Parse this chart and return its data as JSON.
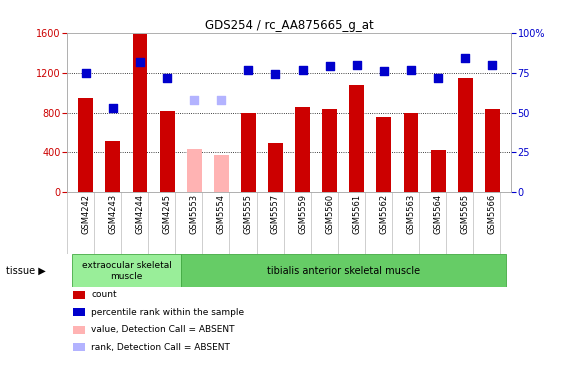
{
  "title": "GDS254 / rc_AA875665_g_at",
  "categories": [
    "GSM4242",
    "GSM4243",
    "GSM4244",
    "GSM4245",
    "GSM5553",
    "GSM5554",
    "GSM5555",
    "GSM5557",
    "GSM5559",
    "GSM5560",
    "GSM5561",
    "GSM5562",
    "GSM5563",
    "GSM5564",
    "GSM5565",
    "GSM5566"
  ],
  "bar_values": [
    950,
    510,
    1590,
    820,
    null,
    null,
    800,
    490,
    860,
    840,
    1080,
    760,
    800,
    420,
    1150,
    840
  ],
  "absent_bar_values": [
    null,
    null,
    null,
    null,
    430,
    370,
    null,
    null,
    null,
    null,
    null,
    null,
    null,
    null,
    null,
    null
  ],
  "dot_values": [
    75,
    53,
    82,
    72,
    null,
    null,
    77,
    74,
    77,
    79,
    80,
    76,
    77,
    72,
    84,
    80
  ],
  "absent_dot_values": [
    null,
    null,
    null,
    null,
    58,
    58,
    null,
    null,
    null,
    null,
    null,
    null,
    null,
    null,
    null,
    null
  ],
  "bar_color": "#cc0000",
  "absent_bar_color": "#ffb3b3",
  "dot_color": "#0000cc",
  "absent_dot_color": "#b3b3ff",
  "ylim_left": [
    0,
    1600
  ],
  "ylim_right": [
    0,
    100
  ],
  "yticks_left": [
    0,
    400,
    800,
    1200,
    1600
  ],
  "yticks_right": [
    0,
    25,
    50,
    75,
    100
  ],
  "ytick_labels_right": [
    "0",
    "25",
    "50",
    "75",
    "100%"
  ],
  "tissue_groups": [
    {
      "label": "extraocular skeletal\nmuscle",
      "start": 0,
      "end": 4,
      "color": "#99ee99"
    },
    {
      "label": "tibialis anterior skeletal muscle",
      "start": 4,
      "end": 16,
      "color": "#66cc66"
    }
  ],
  "tissue_label": "tissue",
  "legend_items": [
    {
      "label": "count",
      "color": "#cc0000"
    },
    {
      "label": "percentile rank within the sample",
      "color": "#0000cc"
    },
    {
      "label": "value, Detection Call = ABSENT",
      "color": "#ffb3b3"
    },
    {
      "label": "rank, Detection Call = ABSENT",
      "color": "#b3b3ff"
    }
  ],
  "bg_color": "#ffffff",
  "bar_width": 0.55,
  "dot_size": 28
}
